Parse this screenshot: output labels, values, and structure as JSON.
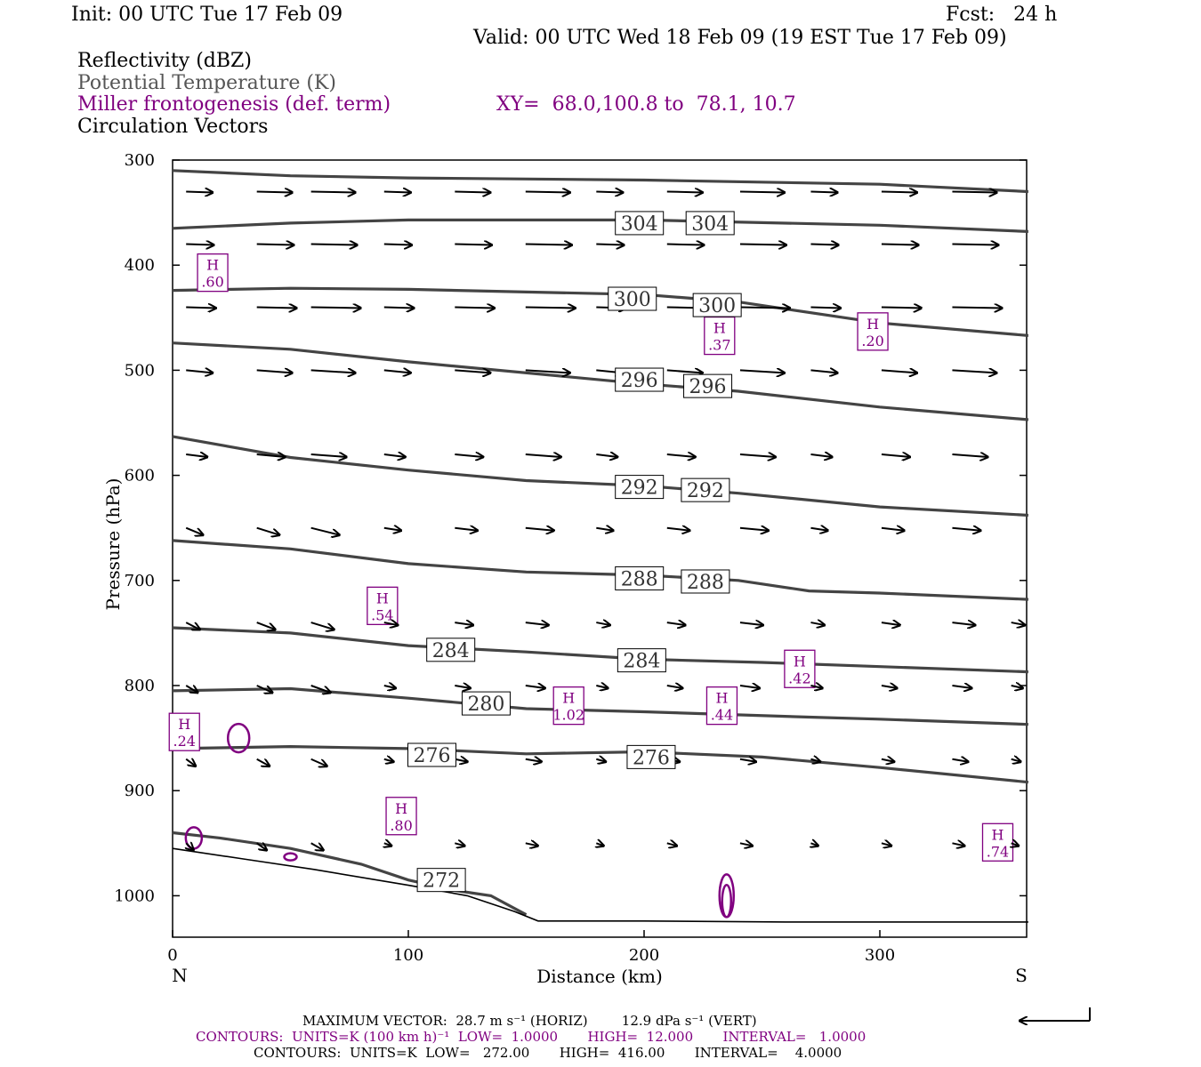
{
  "header": {
    "init": "Init: 00 UTC Tue 17 Feb 09",
    "fcst": "Fcst:   24 h",
    "valid": "Valid: 00 UTC Wed 18 Feb 09 (19 EST Tue 17 Feb 09)"
  },
  "legend": {
    "reflectivity": "Reflectivity (dBZ)",
    "potential_temperature": "Potential Temperature (K)",
    "frontogenesis": "Miller frontogenesis (def. term)",
    "xy": "XY=  68.0,100.8 to  78.1, 10.7",
    "circulation": "Circulation Vectors"
  },
  "colors": {
    "theta": "#444444",
    "frontogenesis": "#800080",
    "vectors": "#000000",
    "terrain": "#000000"
  },
  "footer": {
    "max_vector": "MAXIMUM VECTOR:  28.7 m s⁻¹ (HORIZ)        12.9 dPa s⁻¹ (VERT)",
    "contours_fg": "CONTOURS:  UNITS=K (100 km h)⁻¹  LOW=  1.0000       HIGH=  12.000       INTERVAL=   1.0000",
    "contours_theta": "CONTOURS:  UNITS=K  LOW=   272.00       HIGH=  416.00       INTERVAL=    4.0000"
  },
  "chart_data": {
    "type": "line",
    "title": "",
    "xlabel": "Distance (km)",
    "ylabel": "Pressure (hPa)",
    "xlim": [
      0,
      363
    ],
    "ylim": [
      1040,
      300
    ],
    "x_ticks": [
      0,
      100,
      200,
      300
    ],
    "y_ticks": [
      300,
      400,
      500,
      600,
      700,
      800,
      900,
      1000
    ],
    "x_end_labels": {
      "left": "N",
      "right": "S"
    },
    "theta_contours": [
      {
        "label": "304",
        "points": [
          [
            0,
            310
          ],
          [
            50,
            315
          ],
          [
            100,
            317
          ],
          [
            200,
            319
          ],
          [
            300,
            323
          ],
          [
            363,
            330
          ]
        ]
      },
      {
        "label": "304",
        "points": [
          [
            0,
            365
          ],
          [
            50,
            360
          ],
          [
            100,
            357
          ],
          [
            200,
            357
          ],
          [
            300,
            362
          ],
          [
            363,
            368
          ]
        ]
      },
      {
        "label": "300",
        "points": [
          [
            0,
            424
          ],
          [
            50,
            422
          ],
          [
            100,
            423
          ],
          [
            200,
            428
          ],
          [
            240,
            435
          ],
          [
            300,
            455
          ],
          [
            363,
            467
          ]
        ]
      },
      {
        "label": "296",
        "points": [
          [
            0,
            474
          ],
          [
            50,
            480
          ],
          [
            100,
            492
          ],
          [
            200,
            513
          ],
          [
            240,
            520
          ],
          [
            300,
            535
          ],
          [
            363,
            547
          ]
        ]
      },
      {
        "label": "292",
        "points": [
          [
            0,
            563
          ],
          [
            50,
            583
          ],
          [
            100,
            595
          ],
          [
            150,
            605
          ],
          [
            200,
            610
          ],
          [
            240,
            617
          ],
          [
            300,
            630
          ],
          [
            363,
            638
          ]
        ]
      },
      {
        "label": "288",
        "points": [
          [
            0,
            662
          ],
          [
            50,
            670
          ],
          [
            100,
            684
          ],
          [
            150,
            692
          ],
          [
            200,
            695
          ],
          [
            240,
            700
          ],
          [
            270,
            710
          ],
          [
            300,
            712
          ],
          [
            363,
            718
          ]
        ]
      },
      {
        "label": "284",
        "points": [
          [
            0,
            745
          ],
          [
            50,
            750
          ],
          [
            100,
            762
          ],
          [
            150,
            768
          ],
          [
            200,
            775
          ],
          [
            250,
            778
          ],
          [
            300,
            782
          ],
          [
            363,
            787
          ]
        ]
      },
      {
        "label": "280",
        "points": [
          [
            0,
            805
          ],
          [
            50,
            803
          ],
          [
            100,
            812
          ],
          [
            150,
            822
          ],
          [
            200,
            825
          ],
          [
            270,
            830
          ],
          [
            300,
            832
          ],
          [
            363,
            837
          ]
        ]
      },
      {
        "label": "276",
        "points": [
          [
            0,
            860
          ],
          [
            50,
            858
          ],
          [
            100,
            860
          ],
          [
            150,
            865
          ],
          [
            200,
            863
          ],
          [
            250,
            868
          ],
          [
            300,
            878
          ],
          [
            363,
            892
          ]
        ]
      },
      {
        "label": "272",
        "points": [
          [
            0,
            940
          ],
          [
            20,
            945
          ],
          [
            50,
            955
          ],
          [
            80,
            970
          ],
          [
            100,
            985
          ],
          [
            120,
            995
          ],
          [
            135,
            1000
          ],
          [
            150,
            1018
          ]
        ]
      }
    ],
    "contour_labels": [
      {
        "text": "304",
        "x": 198,
        "p": 360
      },
      {
        "text": "304",
        "x": 228,
        "p": 360
      },
      {
        "text": "300",
        "x": 195,
        "p": 432
      },
      {
        "text": "300",
        "x": 231,
        "p": 438
      },
      {
        "text": "296",
        "x": 198,
        "p": 509
      },
      {
        "text": "296",
        "x": 227,
        "p": 515
      },
      {
        "text": "292",
        "x": 198,
        "p": 611
      },
      {
        "text": "292",
        "x": 226,
        "p": 614
      },
      {
        "text": "288",
        "x": 198,
        "p": 698
      },
      {
        "text": "288",
        "x": 226,
        "p": 701
      },
      {
        "text": "284",
        "x": 118,
        "p": 766
      },
      {
        "text": "284",
        "x": 199,
        "p": 776
      },
      {
        "text": "280",
        "x": 133,
        "p": 817
      },
      {
        "text": "276",
        "x": 110,
        "p": 866
      },
      {
        "text": "276",
        "x": 203,
        "p": 868
      },
      {
        "text": "272",
        "x": 114,
        "p": 985
      }
    ],
    "frontogenesis_maxima": [
      {
        "label": "H",
        "value": ".60",
        "x": 17,
        "p": 408
      },
      {
        "label": "H",
        "value": ".37",
        "x": 232,
        "p": 468
      },
      {
        "label": "H",
        "value": ".20",
        "x": 297,
        "p": 464
      },
      {
        "label": "H",
        "value": ".54",
        "x": 89,
        "p": 725
      },
      {
        "label": "H",
        "value": ".42",
        "x": 266,
        "p": 785
      },
      {
        "label": "H",
        "value": "1.02",
        "x": 168,
        "p": 820
      },
      {
        "label": "H",
        "value": ".44",
        "x": 233,
        "p": 820
      },
      {
        "label": "H",
        "value": ".24",
        "x": 5,
        "p": 845
      },
      {
        "label": "H",
        "value": ".80",
        "x": 97,
        "p": 925
      },
      {
        "label": "H",
        "value": ".74",
        "x": 350,
        "p": 950
      }
    ],
    "vector_columns_x": [
      8,
      38,
      61,
      92,
      122,
      152,
      182,
      212,
      243,
      273,
      303,
      333,
      358
    ],
    "vector_rows_p": [
      330,
      380,
      440,
      500,
      580,
      650,
      740,
      800,
      870,
      950
    ],
    "terrain_pressure": [
      [
        0,
        955
      ],
      [
        30,
        965
      ],
      [
        60,
        975
      ],
      [
        100,
        990
      ],
      [
        125,
        1000
      ],
      [
        145,
        1015
      ],
      [
        155,
        1024
      ],
      [
        200,
        1024
      ],
      [
        260,
        1025
      ],
      [
        363,
        1025
      ]
    ]
  }
}
